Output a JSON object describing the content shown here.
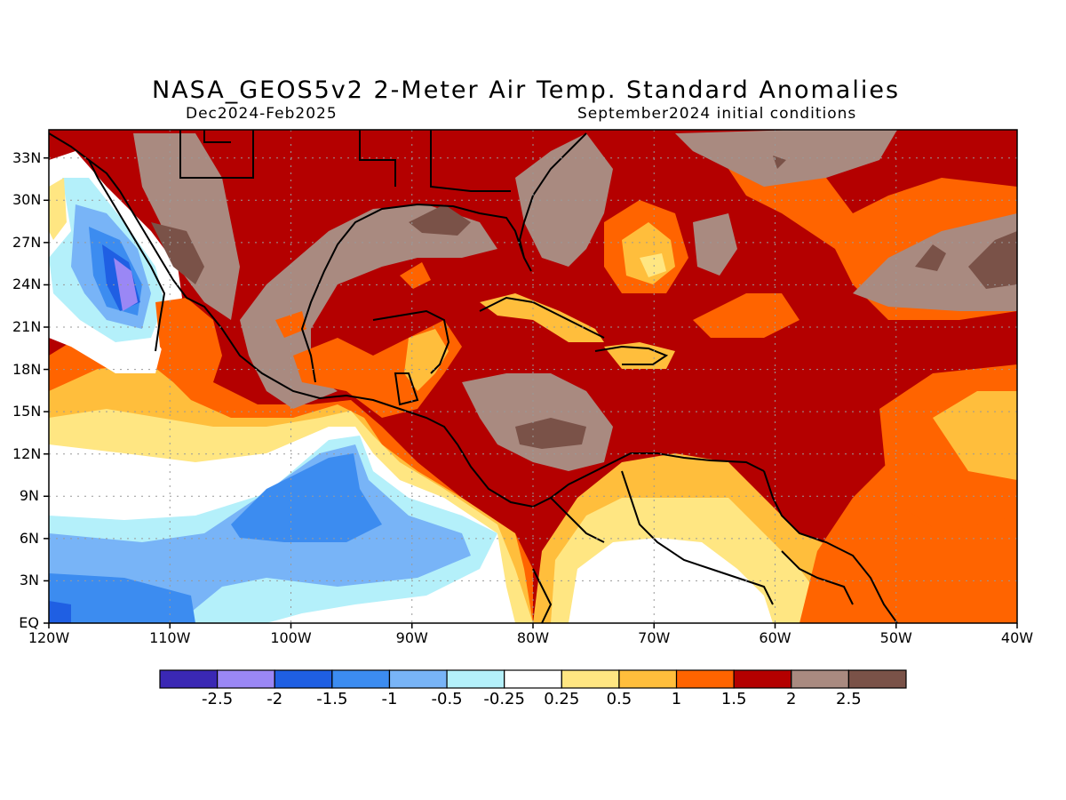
{
  "header": {
    "title": "NASA_GEOS5v2 2-Meter Air Temp. Standard Anomalies",
    "period": "Dec2024-Feb2025",
    "init": "September2024 initial conditions"
  },
  "map": {
    "lat_labels": [
      "EQ",
      "3N",
      "6N",
      "9N",
      "12N",
      "15N",
      "18N",
      "21N",
      "24N",
      "27N",
      "30N",
      "33N"
    ],
    "lon_labels": [
      "120W",
      "110W",
      "100W",
      "90W",
      "80W",
      "70W",
      "60W",
      "50W",
      "40W"
    ],
    "lon_range": [
      -120,
      -40
    ],
    "lat_range": [
      0,
      35
    ]
  },
  "colorbar": {
    "colors": [
      "#3a28b4",
      "#9a87f5",
      "#1f5fe3",
      "#3c8cf0",
      "#78b4f7",
      "#b4f0fa",
      "#ffffff",
      "#ffe682",
      "#ffbe3c",
      "#ff6400",
      "#b40000",
      "#a98a80",
      "#7a5248"
    ],
    "labels": [
      "-2.5",
      "-2",
      "-1.5",
      "-1",
      "-0.5",
      "-0.25",
      "0.25",
      "0.5",
      "1",
      "1.5",
      "2",
      "2.5"
    ]
  }
}
